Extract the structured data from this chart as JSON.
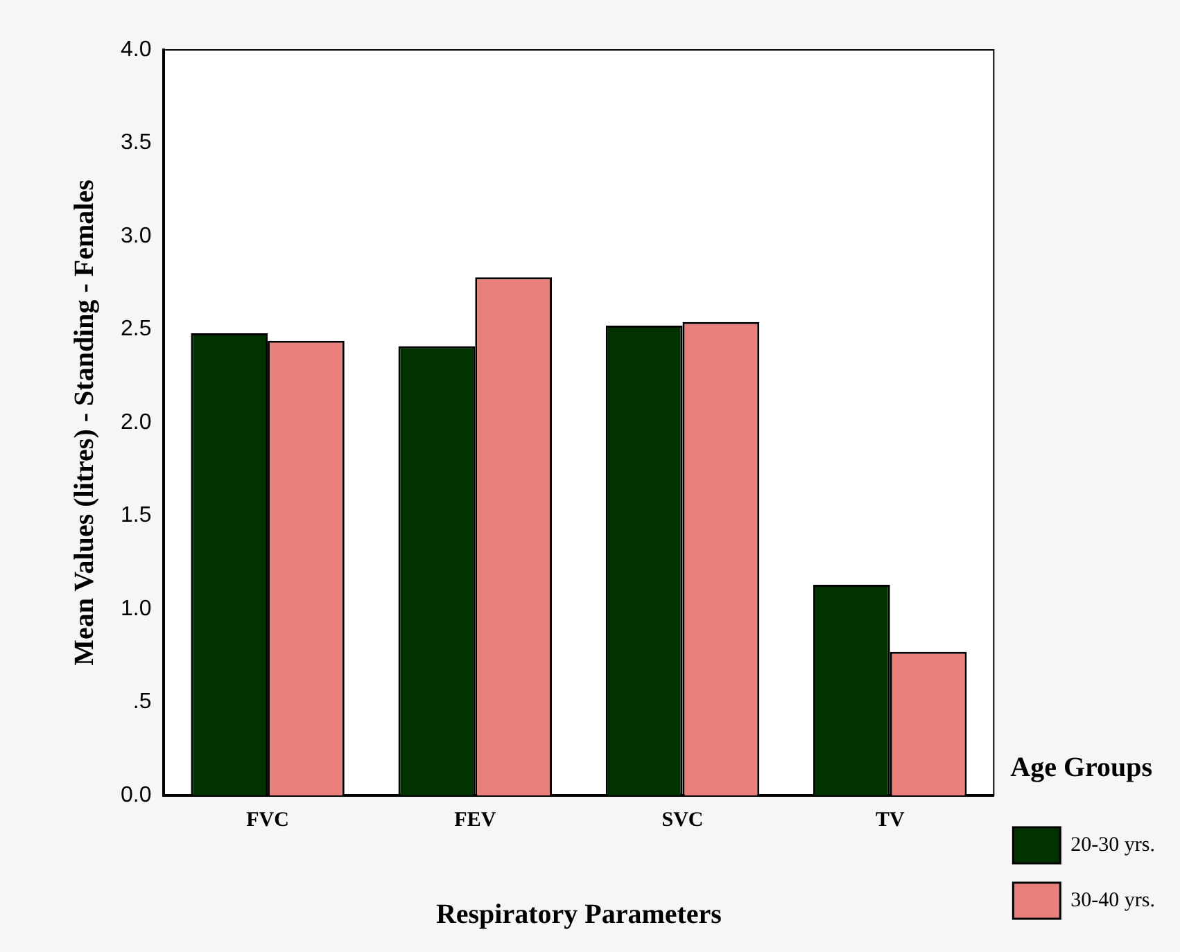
{
  "chart_data": {
    "type": "bar",
    "xlabel": "Respiratory Parameters",
    "ylabel": "Mean Values (litres) - Standing - Females",
    "legend_title": "Age Groups",
    "categories": [
      "FVC",
      "FEV",
      "SVC",
      "TV"
    ],
    "series": [
      {
        "name": "20-30 yrs.",
        "color": "#003300",
        "values": [
          2.48,
          2.41,
          2.52,
          1.13
        ]
      },
      {
        "name": "30-40 yrs.",
        "color": "#e9807c",
        "values": [
          2.44,
          2.78,
          2.54,
          0.77
        ]
      }
    ],
    "ylim": [
      0,
      4
    ],
    "yticks": [
      {
        "value": 0,
        "label": "0.0"
      },
      {
        "value": 0.5,
        "label": ".5"
      },
      {
        "value": 1,
        "label": "1.0"
      },
      {
        "value": 1.5,
        "label": "1.5"
      },
      {
        "value": 2,
        "label": "2.0"
      },
      {
        "value": 2.5,
        "label": "2.5"
      },
      {
        "value": 3,
        "label": "3.0"
      },
      {
        "value": 3.5,
        "label": "3.5"
      },
      {
        "value": 4,
        "label": "4.0"
      }
    ],
    "grid": false,
    "legend": "right"
  }
}
